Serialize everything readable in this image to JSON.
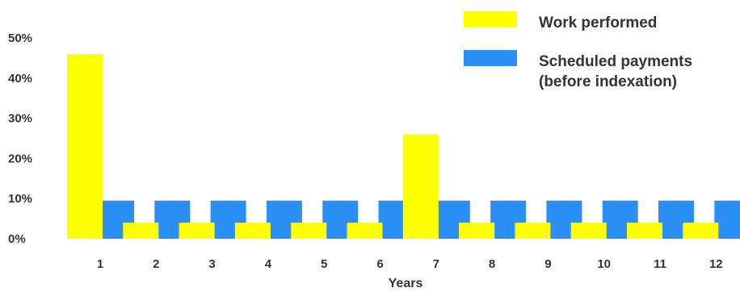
{
  "chart_data": {
    "type": "bar",
    "categories": [
      "1",
      "2",
      "3",
      "4",
      "5",
      "6",
      "7",
      "8",
      "9",
      "10",
      "11",
      "12"
    ],
    "series": [
      {
        "name": "Work performed",
        "values": [
          46,
          4,
          4,
          4,
          4,
          4,
          26,
          4,
          4,
          4,
          4,
          4
        ],
        "color": "#ffff00"
      },
      {
        "name": "Scheduled payments (before indexation)",
        "values": [
          9.5,
          9.5,
          9.5,
          9.5,
          9.5,
          9.5,
          9.5,
          9.5,
          9.5,
          9.5,
          9.5,
          9.5
        ],
        "color": "#2b8ff5"
      }
    ],
    "legend_labels": [
      [
        "Work performed"
      ],
      [
        "Scheduled payments",
        "(before indexation)"
      ]
    ],
    "y_ticks": [
      "0%",
      "10%",
      "20%",
      "30%",
      "40%",
      "50%"
    ],
    "y_tick_values": [
      0,
      10,
      20,
      30,
      40,
      50
    ],
    "xlabel": "Years",
    "ylabel": "",
    "title": "",
    "ylim": [
      0,
      50
    ],
    "grid": false,
    "legend_position": "top-right"
  }
}
